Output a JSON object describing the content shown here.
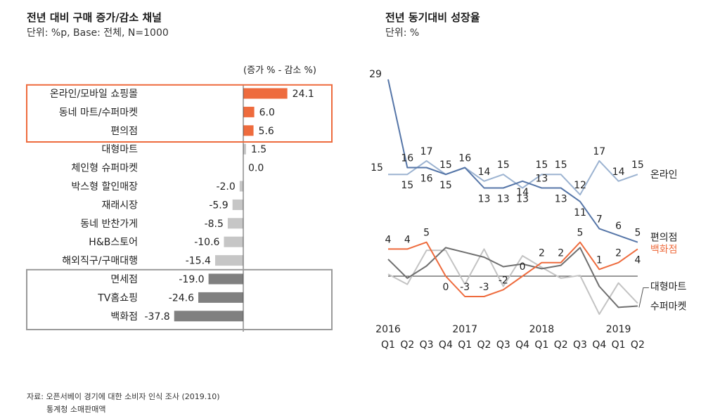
{
  "left": {
    "title": "전년 대비 구매 증가/감소 채널",
    "subtitle": "단위: %p, Base: 전체, N=1000",
    "header_note": "(증가 % - 감소 %)"
  },
  "right": {
    "title": "전년 동기대비 성장율",
    "subtitle": "단위: %"
  },
  "source": {
    "line1": "자료: 오픈서베이 경기에 대한 소비자 인식 조사 (2019.10)",
    "line2": "통계청 소매판매액"
  },
  "chart_data": [
    {
      "type": "bar",
      "orientation": "horizontal",
      "title": "전년 대비 구매 증가/감소 채널",
      "unit": "%p",
      "categories": [
        "온라인/모바일 쇼핑몰",
        "동네 마트/수퍼마켓",
        "편의점",
        "대형마트",
        "체인형 슈퍼마켓",
        "박스형 할인매장",
        "재래시장",
        "동네 반찬가게",
        "H&B스토어",
        "해외직구/구매대행",
        "면세점",
        "TV홈쇼핑",
        "백화점"
      ],
      "values": [
        24.1,
        6.0,
        5.6,
        1.5,
        0.0,
        -2.0,
        -5.9,
        -8.5,
        -10.6,
        -15.4,
        -19.0,
        -24.6,
        -37.8
      ],
      "value_labels": [
        "24.1",
        "6.0",
        "5.6",
        "1.5",
        "0.0",
        "-2.0",
        "-5.9",
        "-8.5",
        "-10.6",
        "-15.4",
        "-19.0",
        "-24.6",
        "-37.8"
      ],
      "highlight_top": [
        0,
        1,
        2
      ],
      "highlight_bottom": [
        10,
        11,
        12
      ],
      "colors": {
        "positive_highlight": "#ee6b3d",
        "neutral": "#c6c6c6",
        "negative_highlight": "#808080",
        "top_box": "#ee6b3d",
        "bottom_box": "#9a9a9a"
      }
    },
    {
      "type": "line",
      "title": "전년 동기대비 성장율",
      "unit": "%",
      "x": [
        "Q1",
        "Q2",
        "Q3",
        "Q4",
        "Q1",
        "Q2",
        "Q3",
        "Q4",
        "Q1",
        "Q2",
        "Q3",
        "Q4",
        "Q1",
        "Q2"
      ],
      "years": [
        {
          "label": "2016",
          "index": 0
        },
        {
          "label": "2017",
          "index": 4
        },
        {
          "label": "2018",
          "index": 8
        },
        {
          "label": "2019",
          "index": 12
        }
      ],
      "series": [
        {
          "name": "온라인",
          "color": "#9cb3d1",
          "values": [
            15,
            15,
            17,
            15,
            16,
            14,
            15,
            13,
            15,
            15,
            12,
            17,
            14,
            15
          ],
          "labels": [
            "15",
            "15",
            "17",
            "15",
            "16",
            "14",
            "15",
            "13",
            "15",
            "15",
            "12",
            "17",
            "14",
            "15"
          ]
        },
        {
          "name": "편의점",
          "color": "#5676a8",
          "values": [
            29,
            16,
            16,
            15,
            16,
            13,
            13,
            14,
            13,
            13,
            11,
            7,
            6,
            5
          ],
          "labels": [
            "29",
            "16",
            "16",
            "15",
            "",
            "13",
            "13",
            "14",
            "13",
            "13",
            "11",
            "7",
            "6",
            "5"
          ]
        },
        {
          "name": "백화점",
          "color": "#ee6b3d",
          "values": [
            4,
            4,
            5,
            0,
            -3,
            -3,
            -2,
            0,
            2,
            2,
            5,
            1,
            2,
            4
          ],
          "labels": [
            "4",
            "4",
            "5",
            "0",
            "-3",
            "-3",
            "-2",
            "0",
            "2",
            "2",
            "5",
            "1",
            "2",
            "4"
          ]
        },
        {
          "name": "대형마트",
          "color": "#6f6f6f",
          "values": [
            2.5,
            -0.3,
            1.5,
            4.2,
            3.5,
            2.8,
            1.4,
            1.8,
            1.1,
            1.6,
            4.2,
            -1.5,
            -4.6,
            -4.4
          ],
          "labels": []
        },
        {
          "name": "수퍼마켓",
          "color": "#c3c3c3",
          "values": [
            0.3,
            -1.2,
            3.8,
            3.8,
            -1.2,
            4.0,
            -1.5,
            3.0,
            1.3,
            -0.3,
            0.1,
            -5.6,
            -1.0,
            -4.0
          ],
          "labels": []
        }
      ],
      "ylim": [
        -6,
        30
      ]
    }
  ]
}
